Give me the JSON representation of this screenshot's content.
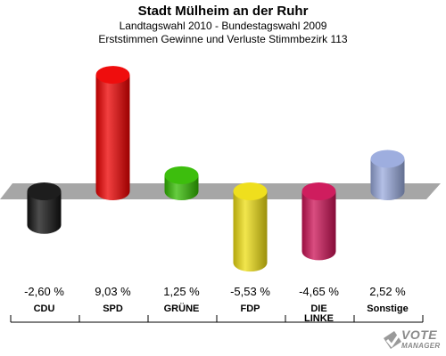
{
  "header": {
    "title": "Stadt Mülheim an der Ruhr",
    "subtitle1": "Landtagswahl 2010 - Bundestagswahl 2009",
    "subtitle2": "Erststimmen Gewinne und Verluste Stimmbezirk 113"
  },
  "chart_data": {
    "type": "bar",
    "categories": [
      "CDU",
      "SPD",
      "GRÜNE",
      "FDP",
      "DIE LINKE",
      "Sonstige"
    ],
    "values": [
      -2.6,
      9.03,
      1.25,
      -5.53,
      -4.65,
      2.52
    ],
    "value_labels": [
      "-2,60 %",
      "9,03 %",
      "1,25 %",
      "-5,53 %",
      "-4,65 %",
      "2,52 %"
    ],
    "colors": [
      "#111111",
      "#ee0000",
      "#33bb00",
      "#eedd11",
      "#cc1155",
      "#99aadd"
    ],
    "ylim": [
      -6,
      10
    ],
    "grid": false,
    "legend": "none",
    "title": "Erststimmen Gewinne und Verluste Stimmbezirk 113"
  },
  "logo": {
    "line1": "VOTE",
    "line2": "MANAGER",
    "icon": "checkmark-ballot-icon"
  }
}
